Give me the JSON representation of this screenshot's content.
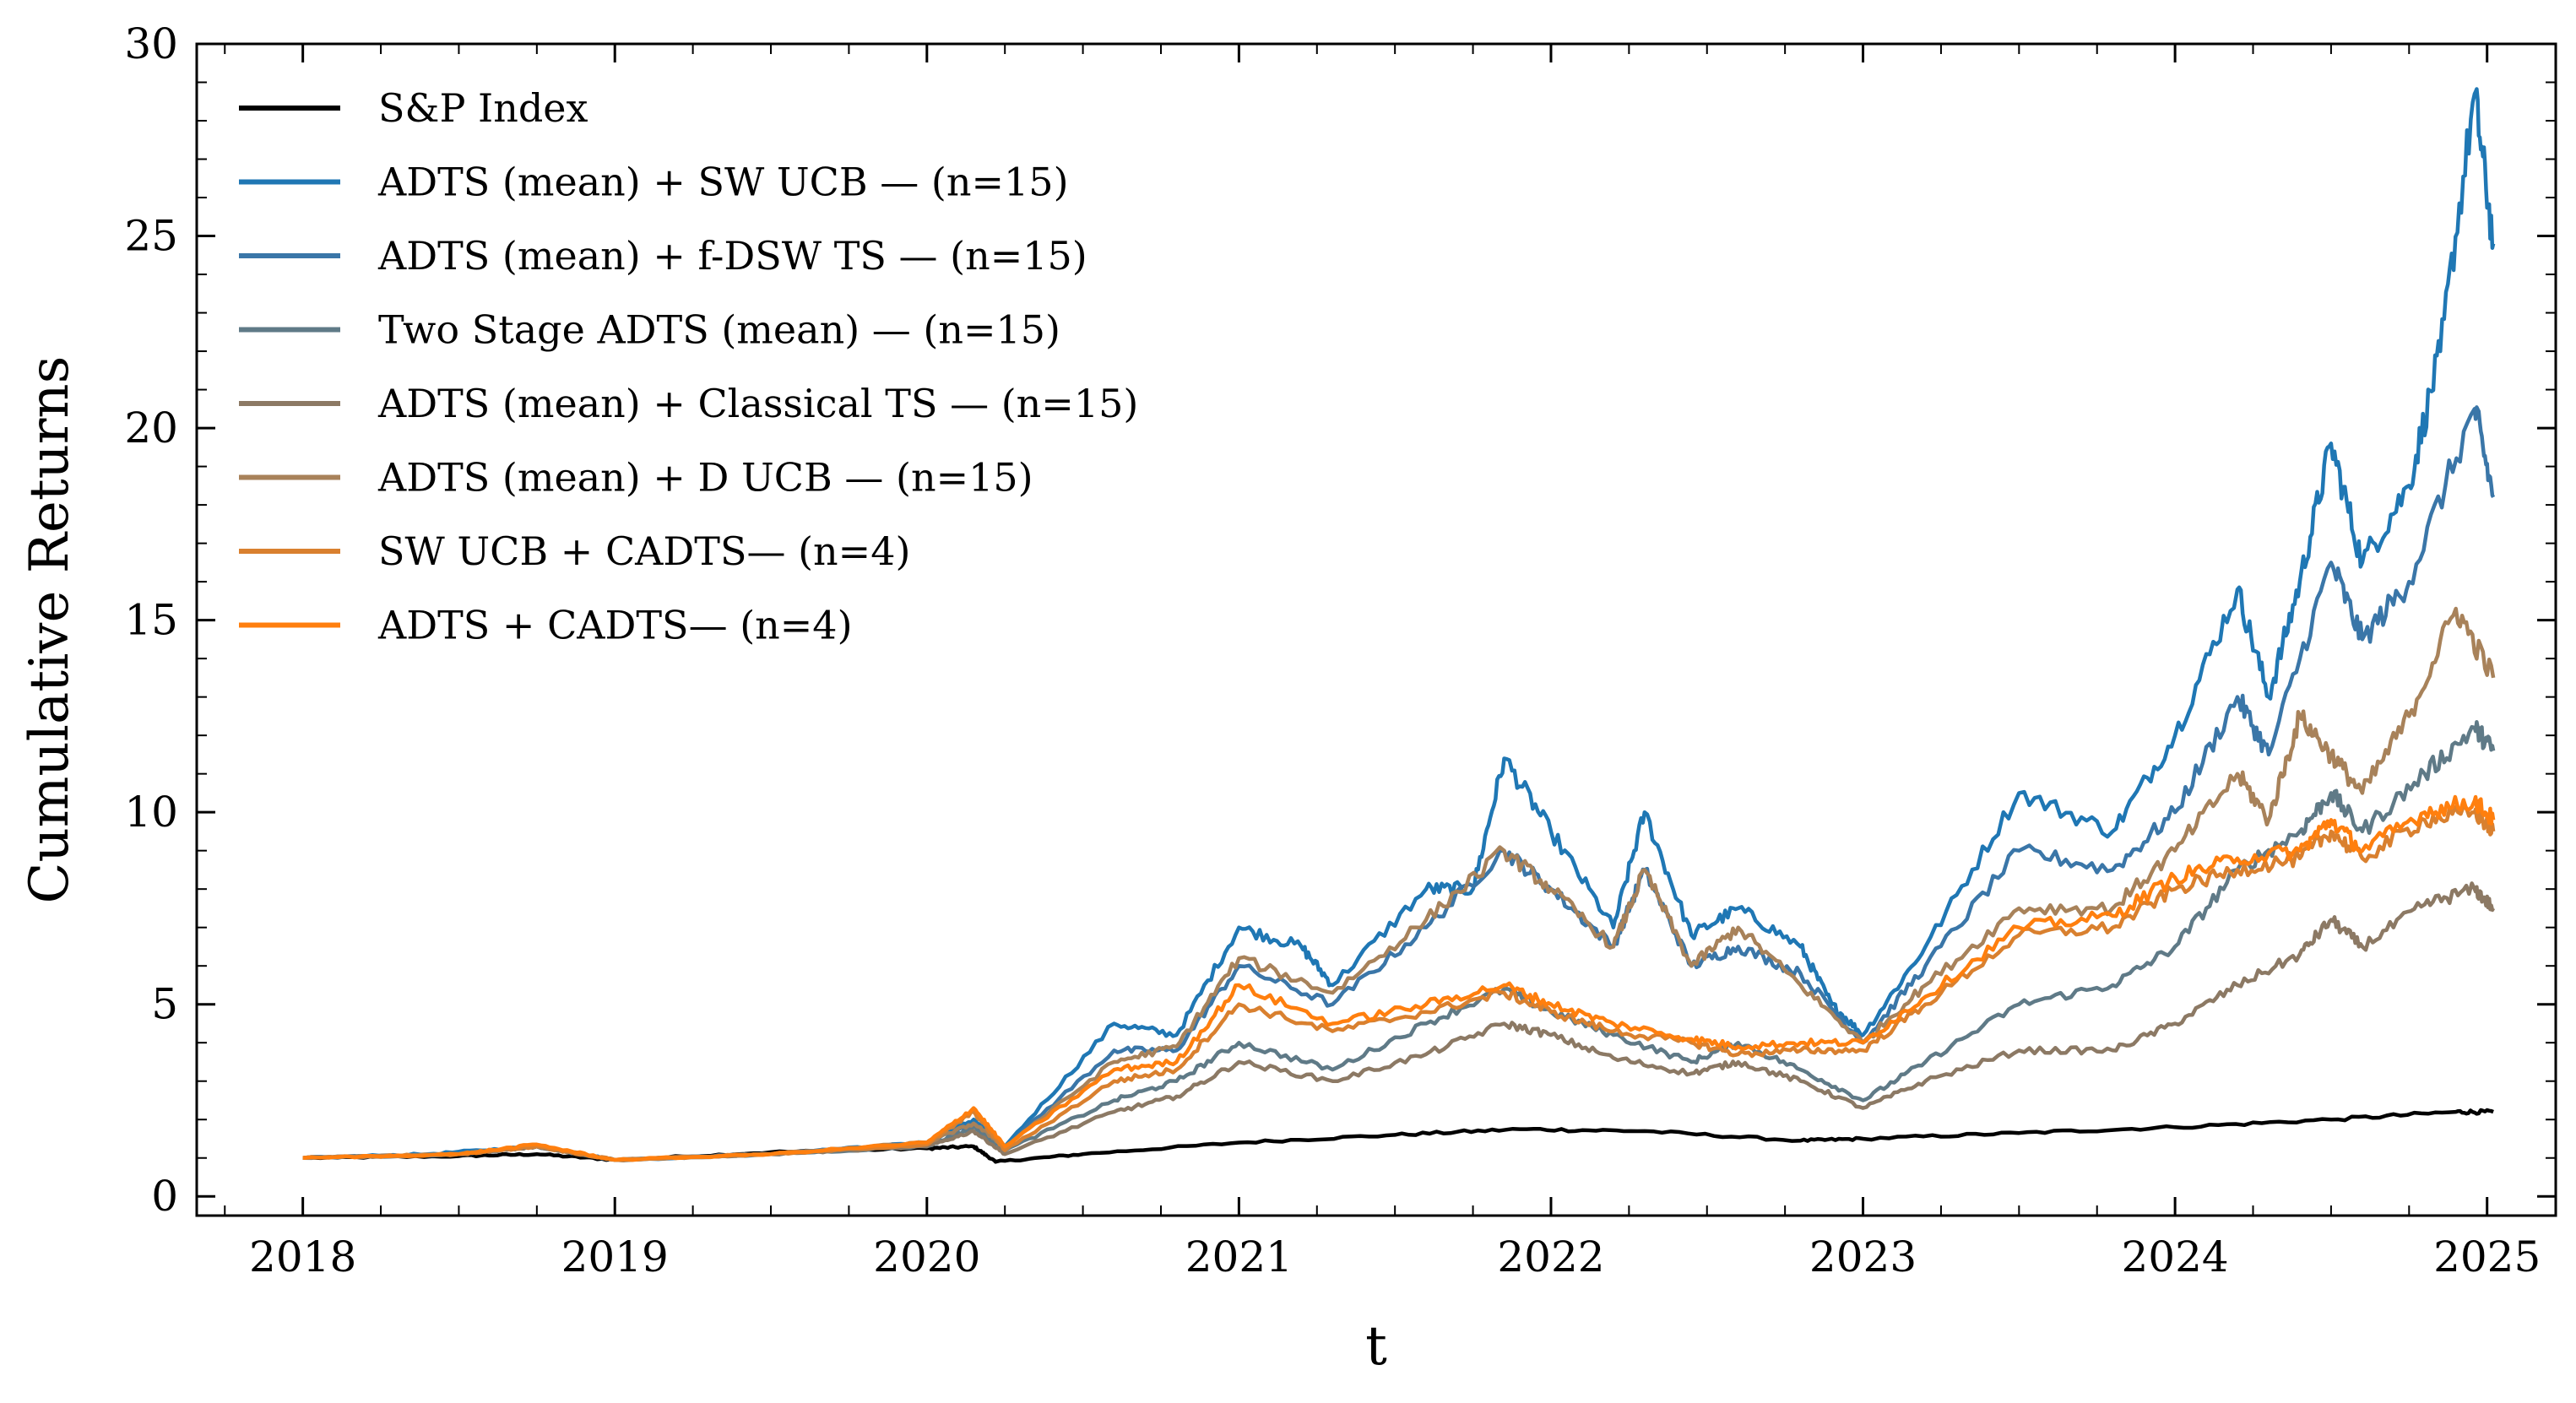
{
  "chart_data": {
    "type": "line",
    "title": "",
    "xlabel": "t",
    "ylabel": "Cumulative Returns",
    "xlim": [
      2017.66,
      2025.22
    ],
    "ylim": [
      -0.5,
      30
    ],
    "xticks": [
      2018,
      2019,
      2020,
      2021,
      2022,
      2023,
      2024,
      2025
    ],
    "xtick_labels": [
      "2018",
      "2019",
      "2020",
      "2021",
      "2022",
      "2023",
      "2024",
      "2025"
    ],
    "yticks": [
      0,
      5,
      10,
      15,
      20,
      25,
      30
    ],
    "ytick_labels": [
      "0",
      "5",
      "10",
      "15",
      "20",
      "25",
      "30"
    ],
    "grid": false,
    "legend_position": "top-left",
    "series": [
      {
        "name": "S&P Index",
        "color": "#000000",
        "points": [
          [
            2018.0,
            1.0
          ],
          [
            2018.5,
            1.05
          ],
          [
            2018.75,
            1.1
          ],
          [
            2019.0,
            0.95
          ],
          [
            2019.5,
            1.15
          ],
          [
            2020.0,
            1.25
          ],
          [
            2020.15,
            1.3
          ],
          [
            2020.22,
            0.9
          ],
          [
            2020.5,
            1.1
          ],
          [
            2021.0,
            1.4
          ],
          [
            2021.5,
            1.6
          ],
          [
            2021.9,
            1.75
          ],
          [
            2022.3,
            1.7
          ],
          [
            2022.8,
            1.45
          ],
          [
            2023.0,
            1.5
          ],
          [
            2023.5,
            1.65
          ],
          [
            2024.0,
            1.8
          ],
          [
            2024.5,
            2.0
          ],
          [
            2024.9,
            2.2
          ],
          [
            2025.02,
            2.2
          ]
        ]
      },
      {
        "name": "ADTS (mean) + SW UCB — (n=15)",
        "color": "#1f77b4",
        "points": [
          [
            2018.0,
            1.0
          ],
          [
            2018.4,
            1.1
          ],
          [
            2018.75,
            1.3
          ],
          [
            2019.0,
            0.95
          ],
          [
            2019.5,
            1.1
          ],
          [
            2020.0,
            1.4
          ],
          [
            2020.15,
            2.0
          ],
          [
            2020.25,
            1.3
          ],
          [
            2020.6,
            4.5
          ],
          [
            2020.8,
            4.2
          ],
          [
            2021.0,
            7.0
          ],
          [
            2021.2,
            6.5
          ],
          [
            2021.3,
            5.5
          ],
          [
            2021.6,
            8.0
          ],
          [
            2021.75,
            8.0
          ],
          [
            2021.85,
            11.4
          ],
          [
            2022.0,
            9.5
          ],
          [
            2022.2,
            7.0
          ],
          [
            2022.3,
            10.0
          ],
          [
            2022.45,
            6.8
          ],
          [
            2022.6,
            7.5
          ],
          [
            2022.8,
            6.5
          ],
          [
            2022.9,
            5.0
          ],
          [
            2023.0,
            4.2
          ],
          [
            2023.2,
            6.5
          ],
          [
            2023.5,
            10.5
          ],
          [
            2023.8,
            9.5
          ],
          [
            2024.0,
            12.0
          ],
          [
            2024.2,
            15.8
          ],
          [
            2024.3,
            13.0
          ],
          [
            2024.4,
            16.0
          ],
          [
            2024.5,
            19.6
          ],
          [
            2024.6,
            16.5
          ],
          [
            2024.75,
            18.5
          ],
          [
            2024.85,
            22.0
          ],
          [
            2024.96,
            28.7
          ],
          [
            2025.02,
            24.8
          ]
        ]
      },
      {
        "name": "ADTS (mean) + f-DSW TS — (n=15)",
        "color": "#3a76a8",
        "points": [
          [
            2018.0,
            1.0
          ],
          [
            2018.5,
            1.1
          ],
          [
            2018.75,
            1.3
          ],
          [
            2019.0,
            0.95
          ],
          [
            2019.5,
            1.1
          ],
          [
            2020.0,
            1.4
          ],
          [
            2020.15,
            1.9
          ],
          [
            2020.25,
            1.3
          ],
          [
            2020.6,
            3.8
          ],
          [
            2020.8,
            3.8
          ],
          [
            2021.0,
            6.0
          ],
          [
            2021.3,
            5.0
          ],
          [
            2021.6,
            7.0
          ],
          [
            2021.85,
            9.0
          ],
          [
            2022.0,
            8.0
          ],
          [
            2022.2,
            6.5
          ],
          [
            2022.3,
            8.5
          ],
          [
            2022.45,
            6.0
          ],
          [
            2022.6,
            6.5
          ],
          [
            2022.8,
            5.8
          ],
          [
            2023.0,
            4.0
          ],
          [
            2023.2,
            6.0
          ],
          [
            2023.5,
            9.0
          ],
          [
            2023.8,
            8.5
          ],
          [
            2024.0,
            10.0
          ],
          [
            2024.2,
            13.0
          ],
          [
            2024.3,
            11.5
          ],
          [
            2024.5,
            16.5
          ],
          [
            2024.6,
            14.5
          ],
          [
            2024.75,
            16.0
          ],
          [
            2024.96,
            20.5
          ],
          [
            2025.02,
            18.2
          ]
        ]
      },
      {
        "name": "Two Stage ADTS (mean) — (n=15)",
        "color": "#5f7a87",
        "points": [
          [
            2018.0,
            1.0
          ],
          [
            2018.5,
            1.1
          ],
          [
            2018.75,
            1.3
          ],
          [
            2019.0,
            0.95
          ],
          [
            2019.5,
            1.1
          ],
          [
            2020.0,
            1.3
          ],
          [
            2020.15,
            1.8
          ],
          [
            2020.25,
            1.2
          ],
          [
            2020.6,
            2.5
          ],
          [
            2020.8,
            3.0
          ],
          [
            2021.0,
            4.0
          ],
          [
            2021.3,
            3.3
          ],
          [
            2021.6,
            4.5
          ],
          [
            2021.85,
            5.4
          ],
          [
            2022.0,
            4.8
          ],
          [
            2022.2,
            4.2
          ],
          [
            2022.45,
            3.5
          ],
          [
            2022.6,
            4.0
          ],
          [
            2022.8,
            3.3
          ],
          [
            2023.0,
            2.5
          ],
          [
            2023.2,
            3.5
          ],
          [
            2023.5,
            5.0
          ],
          [
            2023.8,
            5.5
          ],
          [
            2024.0,
            6.5
          ],
          [
            2024.2,
            8.5
          ],
          [
            2024.4,
            9.5
          ],
          [
            2024.5,
            10.5
          ],
          [
            2024.6,
            9.5
          ],
          [
            2024.8,
            11.0
          ],
          [
            2024.96,
            12.2
          ],
          [
            2025.02,
            11.6
          ]
        ]
      },
      {
        "name": "ADTS (mean) + Classical TS — (n=15)",
        "color": "#8c7964",
        "points": [
          [
            2018.0,
            1.0
          ],
          [
            2018.5,
            1.1
          ],
          [
            2018.75,
            1.3
          ],
          [
            2019.0,
            0.95
          ],
          [
            2019.5,
            1.1
          ],
          [
            2020.0,
            1.3
          ],
          [
            2020.15,
            1.7
          ],
          [
            2020.25,
            1.1
          ],
          [
            2020.6,
            2.2
          ],
          [
            2020.8,
            2.6
          ],
          [
            2021.0,
            3.5
          ],
          [
            2021.3,
            3.0
          ],
          [
            2021.6,
            3.7
          ],
          [
            2021.85,
            4.5
          ],
          [
            2022.0,
            4.2
          ],
          [
            2022.2,
            3.6
          ],
          [
            2022.45,
            3.2
          ],
          [
            2022.6,
            3.5
          ],
          [
            2022.8,
            3.0
          ],
          [
            2023.0,
            2.3
          ],
          [
            2023.2,
            3.0
          ],
          [
            2023.5,
            3.8
          ],
          [
            2023.8,
            3.8
          ],
          [
            2024.0,
            4.5
          ],
          [
            2024.2,
            5.5
          ],
          [
            2024.4,
            6.3
          ],
          [
            2024.5,
            7.2
          ],
          [
            2024.6,
            6.5
          ],
          [
            2024.8,
            7.6
          ],
          [
            2024.96,
            8.0
          ],
          [
            2025.02,
            7.5
          ]
        ]
      },
      {
        "name": "ADTS (mean) + D UCB — (n=15)",
        "color": "#a8825a",
        "points": [
          [
            2018.0,
            1.0
          ],
          [
            2018.5,
            1.1
          ],
          [
            2018.75,
            1.3
          ],
          [
            2019.0,
            0.95
          ],
          [
            2019.5,
            1.1
          ],
          [
            2020.0,
            1.4
          ],
          [
            2020.15,
            1.9
          ],
          [
            2020.25,
            1.3
          ],
          [
            2020.6,
            3.5
          ],
          [
            2020.8,
            3.9
          ],
          [
            2021.0,
            6.2
          ],
          [
            2021.3,
            5.3
          ],
          [
            2021.6,
            7.2
          ],
          [
            2021.85,
            9.0
          ],
          [
            2022.0,
            8.0
          ],
          [
            2022.2,
            6.5
          ],
          [
            2022.3,
            8.5
          ],
          [
            2022.45,
            6.0
          ],
          [
            2022.6,
            7.0
          ],
          [
            2022.8,
            5.5
          ],
          [
            2023.0,
            4.0
          ],
          [
            2023.2,
            5.5
          ],
          [
            2023.5,
            7.5
          ],
          [
            2023.8,
            7.5
          ],
          [
            2024.0,
            9.0
          ],
          [
            2024.2,
            11.0
          ],
          [
            2024.3,
            9.8
          ],
          [
            2024.4,
            12.5
          ],
          [
            2024.5,
            11.5
          ],
          [
            2024.6,
            10.5
          ],
          [
            2024.75,
            12.5
          ],
          [
            2024.9,
            15.3
          ],
          [
            2025.02,
            13.5
          ]
        ]
      },
      {
        "name": "SW UCB + CADTS— (n=4)",
        "color": "#d9802f",
        "points": [
          [
            2018.0,
            1.0
          ],
          [
            2018.5,
            1.1
          ],
          [
            2018.75,
            1.3
          ],
          [
            2019.0,
            0.95
          ],
          [
            2019.5,
            1.1
          ],
          [
            2020.0,
            1.35
          ],
          [
            2020.15,
            2.2
          ],
          [
            2020.25,
            1.2
          ],
          [
            2020.6,
            3.0
          ],
          [
            2020.8,
            3.3
          ],
          [
            2021.0,
            5.0
          ],
          [
            2021.3,
            4.3
          ],
          [
            2021.6,
            4.8
          ],
          [
            2021.85,
            5.3
          ],
          [
            2022.0,
            4.8
          ],
          [
            2022.2,
            4.3
          ],
          [
            2022.45,
            4.0
          ],
          [
            2022.6,
            3.7
          ],
          [
            2022.8,
            3.8
          ],
          [
            2023.0,
            3.8
          ],
          [
            2023.2,
            5.0
          ],
          [
            2023.5,
            6.8
          ],
          [
            2023.8,
            7.0
          ],
          [
            2024.0,
            8.0
          ],
          [
            2024.2,
            8.5
          ],
          [
            2024.4,
            8.8
          ],
          [
            2024.5,
            9.5
          ],
          [
            2024.6,
            8.8
          ],
          [
            2024.8,
            9.8
          ],
          [
            2024.96,
            10.0
          ],
          [
            2025.02,
            9.5
          ]
        ]
      },
      {
        "name": "ADTS + CADTS— (n=4)",
        "color": "#ff7f0e",
        "points": [
          [
            2018.0,
            1.0
          ],
          [
            2018.5,
            1.1
          ],
          [
            2018.75,
            1.35
          ],
          [
            2019.0,
            0.95
          ],
          [
            2019.5,
            1.1
          ],
          [
            2020.0,
            1.4
          ],
          [
            2020.15,
            2.3
          ],
          [
            2020.25,
            1.3
          ],
          [
            2020.6,
            3.3
          ],
          [
            2020.8,
            3.5
          ],
          [
            2021.0,
            5.5
          ],
          [
            2021.3,
            4.5
          ],
          [
            2021.6,
            5.0
          ],
          [
            2021.85,
            5.5
          ],
          [
            2022.0,
            5.0
          ],
          [
            2022.2,
            4.5
          ],
          [
            2022.45,
            4.1
          ],
          [
            2022.6,
            3.9
          ],
          [
            2022.8,
            4.0
          ],
          [
            2023.0,
            4.0
          ],
          [
            2023.2,
            5.2
          ],
          [
            2023.5,
            7.0
          ],
          [
            2023.8,
            7.3
          ],
          [
            2024.0,
            8.3
          ],
          [
            2024.2,
            8.8
          ],
          [
            2024.4,
            9.0
          ],
          [
            2024.5,
            9.8
          ],
          [
            2024.6,
            9.0
          ],
          [
            2024.8,
            10.0
          ],
          [
            2024.96,
            10.3
          ],
          [
            2025.02,
            9.8
          ]
        ]
      }
    ]
  }
}
